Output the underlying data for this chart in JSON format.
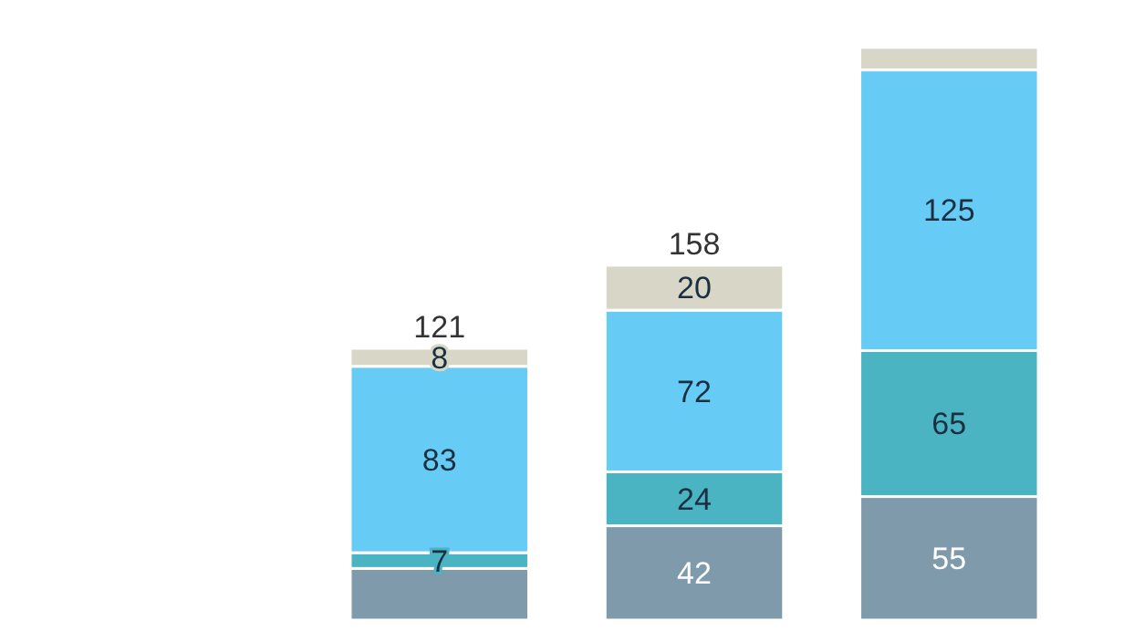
{
  "chart_data": {
    "type": "bar",
    "stacked": true,
    "categories": [
      null,
      null,
      null
    ],
    "series": [
      {
        "color": "#7f9aab",
        "values": [
          23,
          42,
          55
        ],
        "value_labels": [
          null,
          "42",
          "55"
        ]
      },
      {
        "color": "#4ab4c2",
        "values": [
          7,
          24,
          65
        ],
        "value_labels": [
          "7",
          "24",
          "65"
        ]
      },
      {
        "color": "#66ccf5",
        "values": [
          83,
          72,
          125
        ],
        "value_labels": [
          "83",
          "72",
          "125"
        ]
      },
      {
        "color": "#d8d6c6",
        "values": [
          8,
          20,
          10
        ],
        "value_labels": [
          "8",
          "20",
          null
        ]
      }
    ],
    "totals": [
      "121",
      "158",
      null
    ]
  }
}
